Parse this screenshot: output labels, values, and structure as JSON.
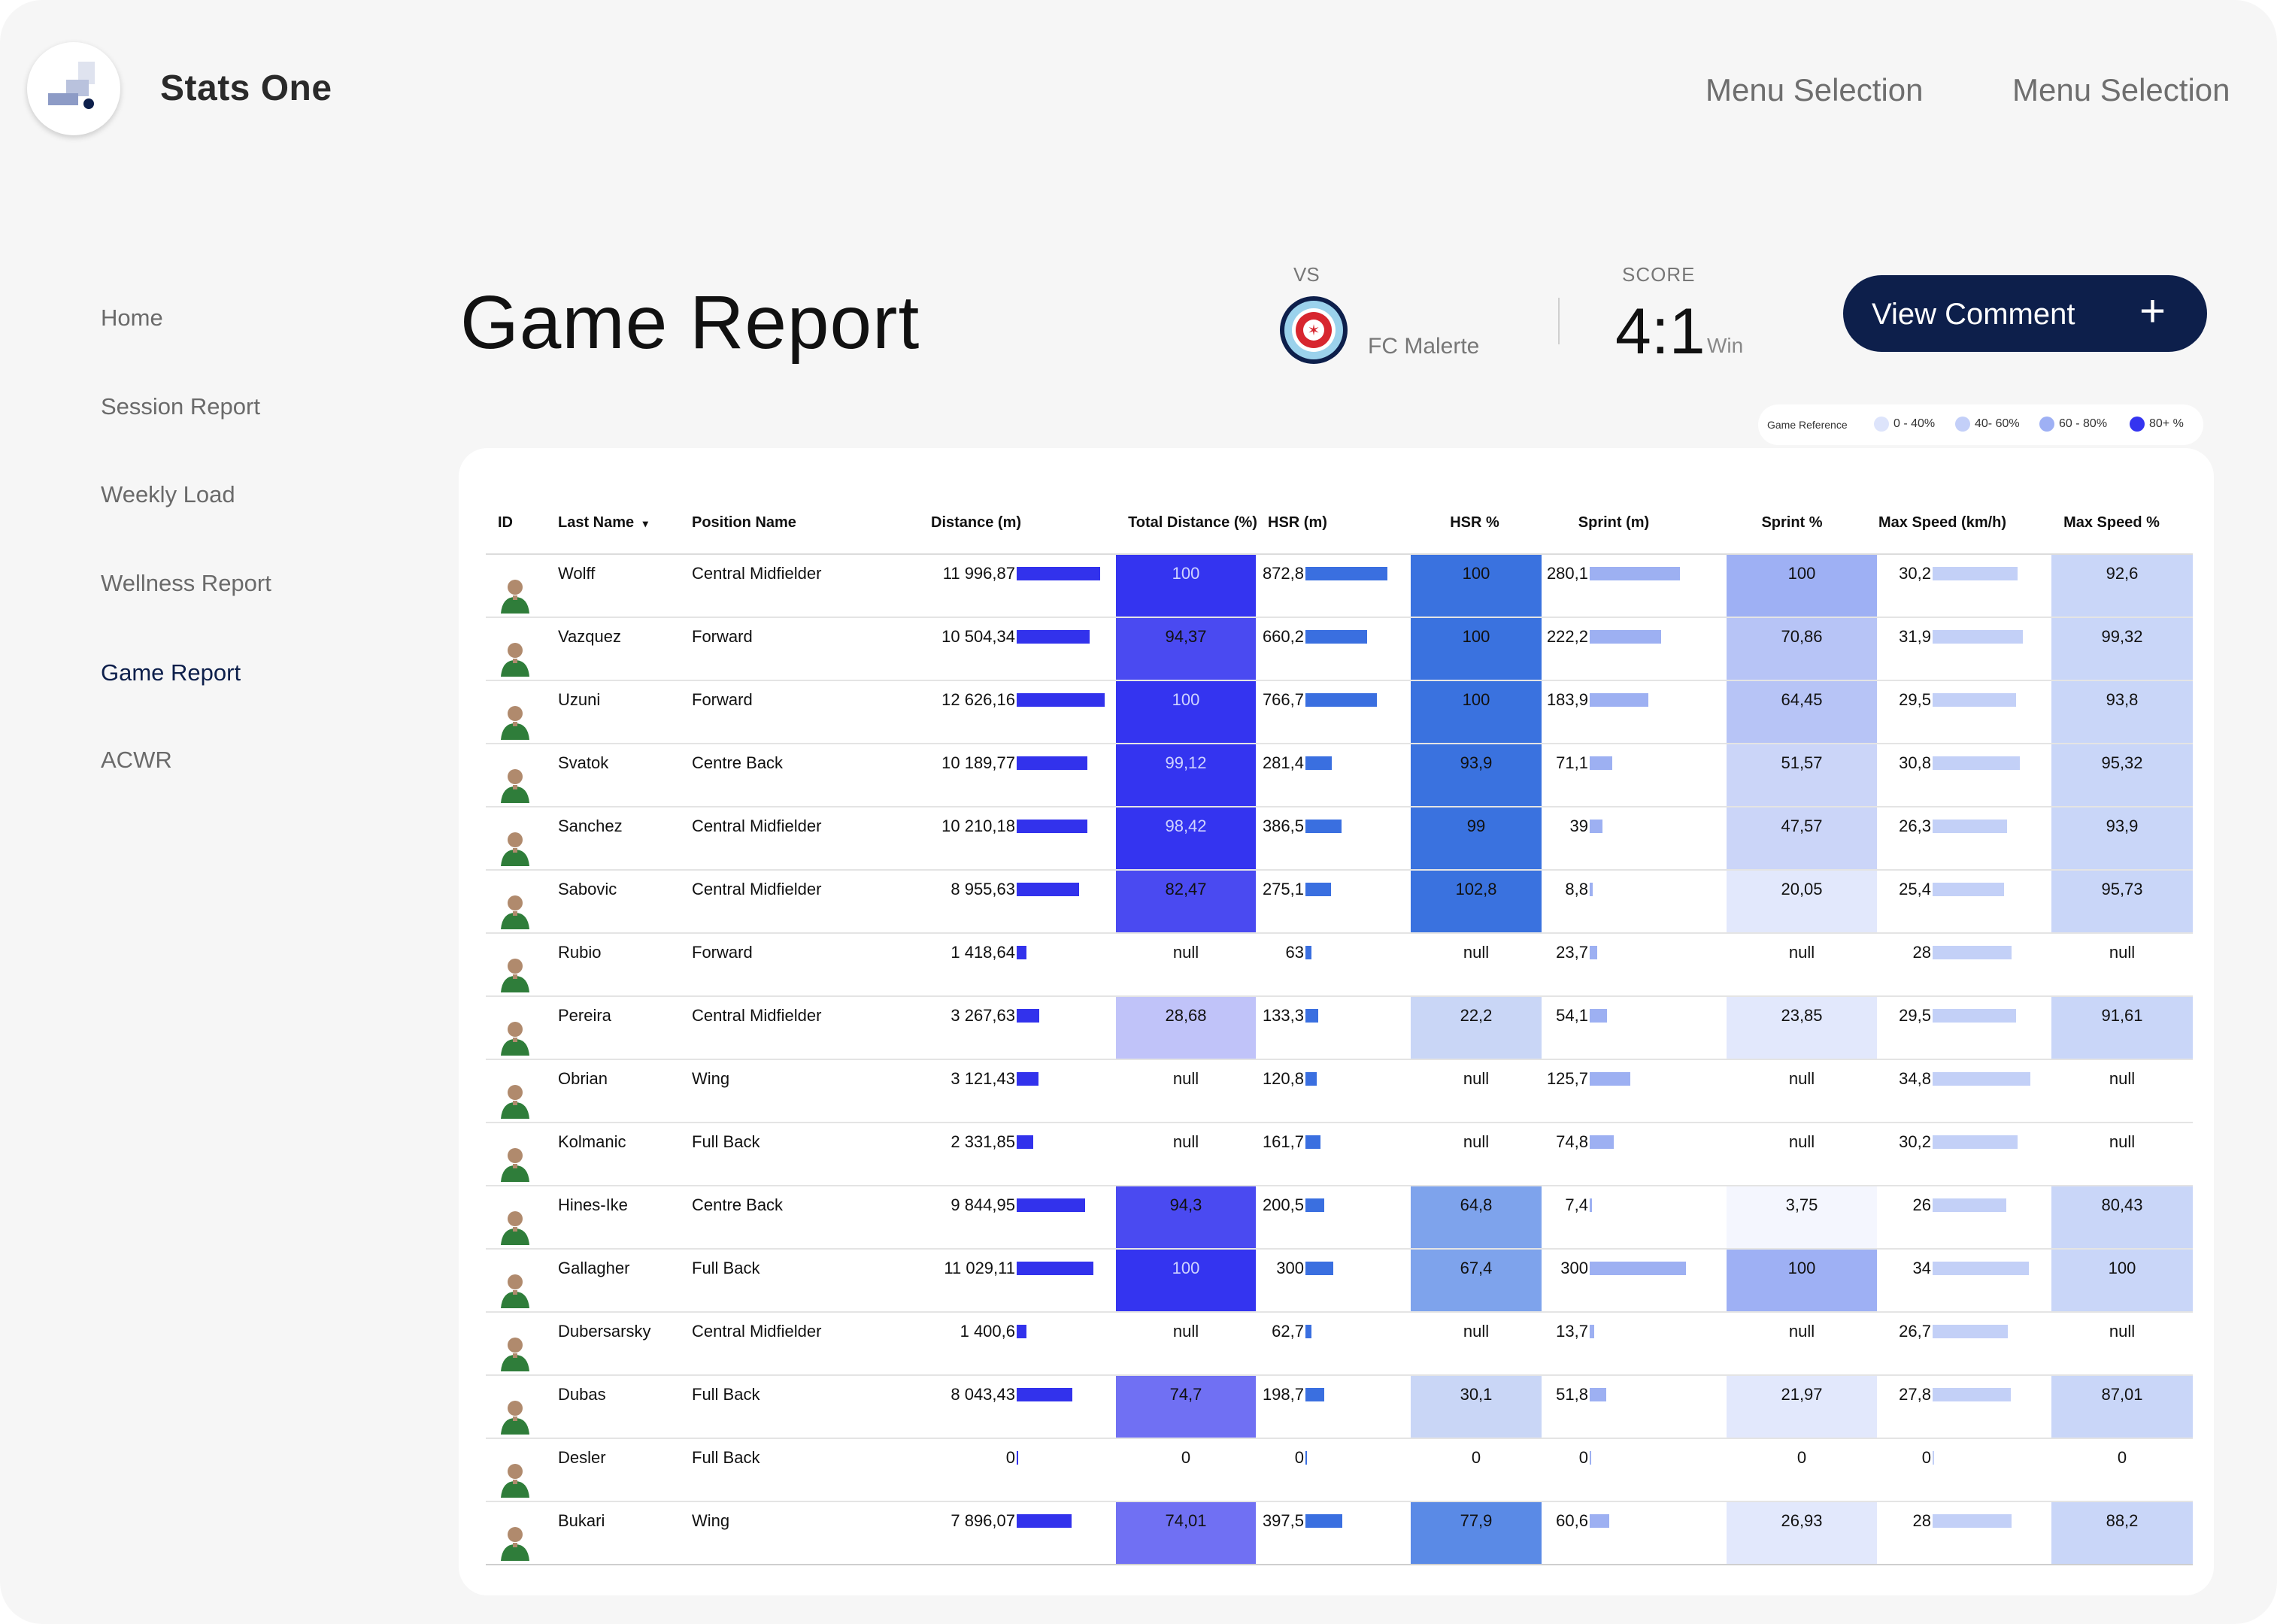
{
  "app": {
    "title": "Stats One",
    "menu": [
      "Menu Selection",
      "Menu Selection"
    ]
  },
  "sidebar": {
    "items": [
      {
        "label": "Home",
        "active": false
      },
      {
        "label": "Session Report",
        "active": false
      },
      {
        "label": "Weekly Load",
        "active": false
      },
      {
        "label": "Wellness Report",
        "active": false
      },
      {
        "label": "Game Report",
        "active": true
      },
      {
        "label": "ACWR",
        "active": false
      }
    ]
  },
  "report": {
    "title": "Game Report",
    "vs_label": "VS",
    "opponent": "FC Malerte",
    "score_label": "SCORE",
    "score": "4:1",
    "result": "Win",
    "comment_button": "View Comment",
    "plus_icon": "+"
  },
  "legend": {
    "title": "Game Reference",
    "items": [
      {
        "label": "0 - 40%",
        "color": "#dde4fb"
      },
      {
        "label": "40- 60%",
        "color": "#c3cff8"
      },
      {
        "label": "60 - 80%",
        "color": "#9eb0f4"
      },
      {
        "label": "80+ %",
        "color": "#3434f0"
      }
    ]
  },
  "table": {
    "columns": [
      "ID",
      "Last Name",
      "Position Name",
      "Distance (m)",
      "Total Distance (%)",
      "HSR (m)",
      "HSR %",
      "Sprint (m)",
      "Sprint %",
      "Max Speed (km/h)",
      "Max Speed %"
    ],
    "sort_indicator": "▾",
    "rows": [
      {
        "last_name": "Wolff",
        "position": "Central Midfielder",
        "distance": "11 996,87",
        "total_pct": "100",
        "hsr": "872,8",
        "hsr_pct": "100",
        "sprint": "280,1",
        "sprint_pct": "100",
        "max_speed": "30,2",
        "max_speed_pct": "92,6"
      },
      {
        "last_name": "Vazquez",
        "position": "Forward",
        "distance": "10 504,34",
        "total_pct": "94,37",
        "hsr": "660,2",
        "hsr_pct": "100",
        "sprint": "222,2",
        "sprint_pct": "70,86",
        "max_speed": "31,9",
        "max_speed_pct": "99,32"
      },
      {
        "last_name": "Uzuni",
        "position": "Forward",
        "distance": "12 626,16",
        "total_pct": "100",
        "hsr": "766,7",
        "hsr_pct": "100",
        "sprint": "183,9",
        "sprint_pct": "64,45",
        "max_speed": "29,5",
        "max_speed_pct": "93,8"
      },
      {
        "last_name": "Svatok",
        "position": "Centre Back",
        "distance": "10 189,77",
        "total_pct": "99,12",
        "hsr": "281,4",
        "hsr_pct": "93,9",
        "sprint": "71,1",
        "sprint_pct": "51,57",
        "max_speed": "30,8",
        "max_speed_pct": "95,32"
      },
      {
        "last_name": "Sanchez",
        "position": "Central Midfielder",
        "distance": "10 210,18",
        "total_pct": "98,42",
        "hsr": "386,5",
        "hsr_pct": "99",
        "sprint": "39",
        "sprint_pct": "47,57",
        "max_speed": "26,3",
        "max_speed_pct": "93,9"
      },
      {
        "last_name": "Sabovic",
        "position": "Central Midfielder",
        "distance": "8 955,63",
        "total_pct": "82,47",
        "hsr": "275,1",
        "hsr_pct": "102,8",
        "sprint": "8,8",
        "sprint_pct": "20,05",
        "max_speed": "25,4",
        "max_speed_pct": "95,73"
      },
      {
        "last_name": "Rubio",
        "position": "Forward",
        "distance": "1 418,64",
        "total_pct": "null",
        "hsr": "63",
        "hsr_pct": "null",
        "sprint": "23,7",
        "sprint_pct": "null",
        "max_speed": "28",
        "max_speed_pct": "null"
      },
      {
        "last_name": "Pereira",
        "position": "Central Midfielder",
        "distance": "3 267,63",
        "total_pct": "28,68",
        "hsr": "133,3",
        "hsr_pct": "22,2",
        "sprint": "54,1",
        "sprint_pct": "23,85",
        "max_speed": "29,5",
        "max_speed_pct": "91,61"
      },
      {
        "last_name": "Obrian",
        "position": "Wing",
        "distance": "3 121,43",
        "total_pct": "null",
        "hsr": "120,8",
        "hsr_pct": "null",
        "sprint": "125,7",
        "sprint_pct": "null",
        "max_speed": "34,8",
        "max_speed_pct": "null"
      },
      {
        "last_name": "Kolmanic",
        "position": "Full Back",
        "distance": "2 331,85",
        "total_pct": "null",
        "hsr": "161,7",
        "hsr_pct": "null",
        "sprint": "74,8",
        "sprint_pct": "null",
        "max_speed": "30,2",
        "max_speed_pct": "null"
      },
      {
        "last_name": "Hines-Ike",
        "position": "Centre Back",
        "distance": "9 844,95",
        "total_pct": "94,3",
        "hsr": "200,5",
        "hsr_pct": "64,8",
        "sprint": "7,4",
        "sprint_pct": "3,75",
        "max_speed": "26",
        "max_speed_pct": "80,43"
      },
      {
        "last_name": "Gallagher",
        "position": "Full Back",
        "distance": "11 029,11",
        "total_pct": "100",
        "hsr": "300",
        "hsr_pct": "67,4",
        "sprint": "300",
        "sprint_pct": "100",
        "max_speed": "34",
        "max_speed_pct": "100"
      },
      {
        "last_name": "Dubersarsky",
        "position": "Central Midfielder",
        "distance": "1 400,6",
        "total_pct": "null",
        "hsr": "62,7",
        "hsr_pct": "null",
        "sprint": "13,7",
        "sprint_pct": "null",
        "max_speed": "26,7",
        "max_speed_pct": "null"
      },
      {
        "last_name": "Dubas",
        "position": "Full Back",
        "distance": "8 043,43",
        "total_pct": "74,7",
        "hsr": "198,7",
        "hsr_pct": "30,1",
        "sprint": "51,8",
        "sprint_pct": "21,97",
        "max_speed": "27,8",
        "max_speed_pct": "87,01"
      },
      {
        "last_name": "Desler",
        "position": "Full Back",
        "distance": "0",
        "total_pct": "0",
        "hsr": "0",
        "hsr_pct": "0",
        "sprint": "0",
        "sprint_pct": "0",
        "max_speed": "0",
        "max_speed_pct": "0"
      },
      {
        "last_name": "Bukari",
        "position": "Wing",
        "distance": "7 896,07",
        "total_pct": "74,01",
        "hsr": "397,5",
        "hsr_pct": "77,9",
        "sprint": "60,6",
        "sprint_pct": "26,93",
        "max_speed": "28",
        "max_speed_pct": "88,2"
      }
    ]
  },
  "colors": {
    "navy": "#0d1f4b",
    "bar_distance": "#3232ec",
    "bar_hsr": "#3a6fe0",
    "bar_sprint": "#9db0f2",
    "bar_speed": "#c3d0f7"
  }
}
